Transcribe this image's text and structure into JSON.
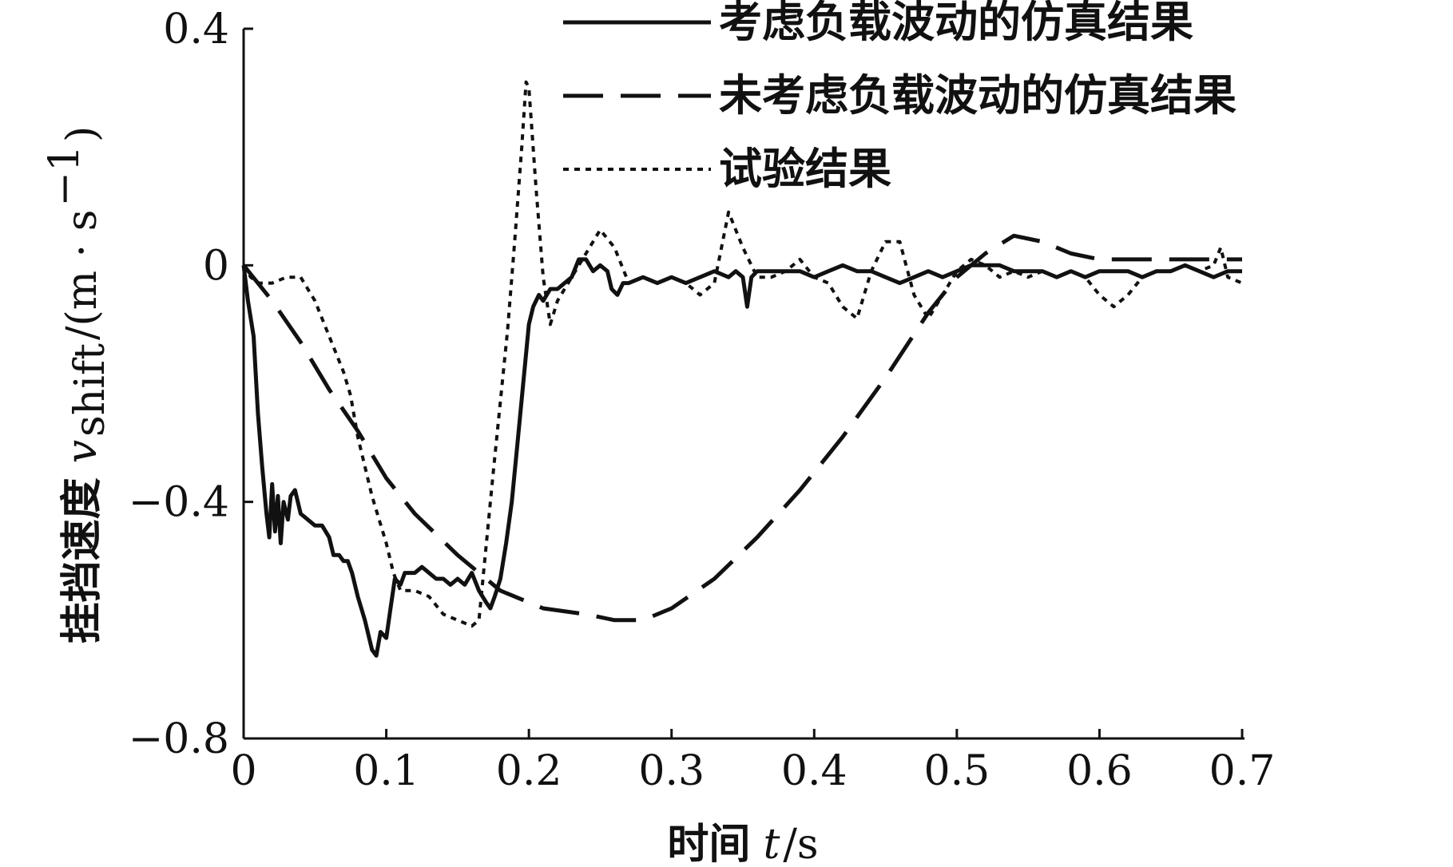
{
  "chart_data": {
    "type": "line",
    "title": "",
    "xlabel": {
      "prefix": "时间",
      "symbol": "t",
      "unit": "/s"
    },
    "ylabel": {
      "prefix": "挂挡速度",
      "symbol": "v",
      "subscript": "shift",
      "unit_open": "/(m · s",
      "unit_sup": "−1",
      "unit_close": ")"
    },
    "xlim": [
      0,
      0.7
    ],
    "ylim": [
      -0.8,
      0.4
    ],
    "x_ticks": [
      0,
      0.1,
      0.2,
      0.3,
      0.4,
      0.5,
      0.6,
      0.7
    ],
    "x_tick_labels": [
      "0",
      "0.1",
      "0.2",
      "0.3",
      "0.4",
      "0.5",
      "0.6",
      "0.7"
    ],
    "y_ticks": [
      -0.8,
      -0.4,
      0,
      0.4
    ],
    "y_tick_labels": [
      "−0.8",
      "−0.4",
      "0",
      "0.4"
    ],
    "legend_position": "top-right",
    "grid": false,
    "series": [
      {
        "name": "考虑负载波动的仿真结果",
        "style": "solid",
        "points": [
          [
            0,
            0
          ],
          [
            0.003,
            -0.06
          ],
          [
            0.007,
            -0.12
          ],
          [
            0.01,
            -0.25
          ],
          [
            0.013,
            -0.34
          ],
          [
            0.016,
            -0.42
          ],
          [
            0.018,
            -0.46
          ],
          [
            0.02,
            -0.37
          ],
          [
            0.022,
            -0.45
          ],
          [
            0.024,
            -0.39
          ],
          [
            0.026,
            -0.47
          ],
          [
            0.028,
            -0.4
          ],
          [
            0.031,
            -0.43
          ],
          [
            0.033,
            -0.39
          ],
          [
            0.036,
            -0.38
          ],
          [
            0.04,
            -0.42
          ],
          [
            0.045,
            -0.43
          ],
          [
            0.05,
            -0.44
          ],
          [
            0.055,
            -0.44
          ],
          [
            0.06,
            -0.46
          ],
          [
            0.063,
            -0.49
          ],
          [
            0.067,
            -0.49
          ],
          [
            0.07,
            -0.5
          ],
          [
            0.073,
            -0.5
          ],
          [
            0.076,
            -0.52
          ],
          [
            0.08,
            -0.56
          ],
          [
            0.085,
            -0.6
          ],
          [
            0.09,
            -0.65
          ],
          [
            0.093,
            -0.66
          ],
          [
            0.096,
            -0.62
          ],
          [
            0.1,
            -0.63
          ],
          [
            0.103,
            -0.58
          ],
          [
            0.106,
            -0.53
          ],
          [
            0.11,
            -0.54
          ],
          [
            0.113,
            -0.52
          ],
          [
            0.117,
            -0.52
          ],
          [
            0.12,
            -0.52
          ],
          [
            0.125,
            -0.51
          ],
          [
            0.13,
            -0.52
          ],
          [
            0.135,
            -0.53
          ],
          [
            0.14,
            -0.53
          ],
          [
            0.145,
            -0.54
          ],
          [
            0.15,
            -0.53
          ],
          [
            0.155,
            -0.54
          ],
          [
            0.16,
            -0.52
          ],
          [
            0.165,
            -0.55
          ],
          [
            0.17,
            -0.57
          ],
          [
            0.173,
            -0.58
          ],
          [
            0.176,
            -0.56
          ],
          [
            0.18,
            -0.53
          ],
          [
            0.184,
            -0.47
          ],
          [
            0.188,
            -0.4
          ],
          [
            0.192,
            -0.3
          ],
          [
            0.196,
            -0.2
          ],
          [
            0.2,
            -0.1
          ],
          [
            0.203,
            -0.07
          ],
          [
            0.207,
            -0.05
          ],
          [
            0.21,
            -0.06
          ],
          [
            0.215,
            -0.04
          ],
          [
            0.22,
            -0.04
          ],
          [
            0.225,
            -0.03
          ],
          [
            0.23,
            -0.02
          ],
          [
            0.235,
            0.01
          ],
          [
            0.24,
            0.01
          ],
          [
            0.245,
            -0.01
          ],
          [
            0.25,
            0.0
          ],
          [
            0.255,
            -0.01
          ],
          [
            0.258,
            -0.04
          ],
          [
            0.262,
            -0.05
          ],
          [
            0.266,
            -0.03
          ],
          [
            0.27,
            -0.03
          ],
          [
            0.28,
            -0.02
          ],
          [
            0.29,
            -0.03
          ],
          [
            0.3,
            -0.02
          ],
          [
            0.31,
            -0.03
          ],
          [
            0.32,
            -0.02
          ],
          [
            0.33,
            -0.01
          ],
          [
            0.34,
            -0.02
          ],
          [
            0.345,
            -0.01
          ],
          [
            0.35,
            -0.02
          ],
          [
            0.353,
            -0.07
          ],
          [
            0.356,
            -0.02
          ],
          [
            0.36,
            -0.01
          ],
          [
            0.37,
            -0.01
          ],
          [
            0.38,
            -0.01
          ],
          [
            0.39,
            -0.01
          ],
          [
            0.4,
            -0.02
          ],
          [
            0.41,
            -0.01
          ],
          [
            0.42,
            0.0
          ],
          [
            0.43,
            -0.01
          ],
          [
            0.44,
            -0.01
          ],
          [
            0.45,
            -0.02
          ],
          [
            0.46,
            -0.03
          ],
          [
            0.47,
            -0.02
          ],
          [
            0.48,
            -0.01
          ],
          [
            0.49,
            -0.02
          ],
          [
            0.5,
            -0.01
          ],
          [
            0.51,
            0.0
          ],
          [
            0.52,
            0.0
          ],
          [
            0.53,
            0.0
          ],
          [
            0.54,
            -0.01
          ],
          [
            0.55,
            -0.01
          ],
          [
            0.56,
            -0.01
          ],
          [
            0.57,
            -0.02
          ],
          [
            0.58,
            -0.01
          ],
          [
            0.59,
            -0.02
          ],
          [
            0.6,
            -0.01
          ],
          [
            0.61,
            -0.01
          ],
          [
            0.62,
            -0.01
          ],
          [
            0.63,
            -0.02
          ],
          [
            0.64,
            -0.01
          ],
          [
            0.65,
            -0.01
          ],
          [
            0.66,
            0.0
          ],
          [
            0.67,
            -0.01
          ],
          [
            0.68,
            -0.02
          ],
          [
            0.69,
            -0.01
          ],
          [
            0.7,
            -0.01
          ]
        ]
      },
      {
        "name": "未考虑负载波动的仿真结果",
        "style": "dashed",
        "points": [
          [
            0,
            0
          ],
          [
            0.02,
            -0.06
          ],
          [
            0.04,
            -0.13
          ],
          [
            0.06,
            -0.21
          ],
          [
            0.08,
            -0.28
          ],
          [
            0.1,
            -0.36
          ],
          [
            0.12,
            -0.42
          ],
          [
            0.15,
            -0.49
          ],
          [
            0.18,
            -0.55
          ],
          [
            0.21,
            -0.58
          ],
          [
            0.24,
            -0.59
          ],
          [
            0.26,
            -0.6
          ],
          [
            0.28,
            -0.6
          ],
          [
            0.3,
            -0.58
          ],
          [
            0.33,
            -0.53
          ],
          [
            0.36,
            -0.46
          ],
          [
            0.39,
            -0.38
          ],
          [
            0.42,
            -0.29
          ],
          [
            0.45,
            -0.19
          ],
          [
            0.48,
            -0.08
          ],
          [
            0.5,
            -0.02
          ],
          [
            0.52,
            0.02
          ],
          [
            0.54,
            0.05
          ],
          [
            0.56,
            0.04
          ],
          [
            0.58,
            0.02
          ],
          [
            0.6,
            0.01
          ],
          [
            0.63,
            0.01
          ],
          [
            0.66,
            0.01
          ],
          [
            0.7,
            0.01
          ]
        ]
      },
      {
        "name": "试验结果",
        "style": "dotted",
        "points": [
          [
            0,
            0
          ],
          [
            0.005,
            -0.02
          ],
          [
            0.01,
            -0.03
          ],
          [
            0.02,
            -0.03
          ],
          [
            0.03,
            -0.02
          ],
          [
            0.04,
            -0.02
          ],
          [
            0.05,
            -0.06
          ],
          [
            0.06,
            -0.12
          ],
          [
            0.07,
            -0.18
          ],
          [
            0.075,
            -0.22
          ],
          [
            0.08,
            -0.29
          ],
          [
            0.09,
            -0.39
          ],
          [
            0.1,
            -0.47
          ],
          [
            0.105,
            -0.52
          ],
          [
            0.11,
            -0.55
          ],
          [
            0.12,
            -0.55
          ],
          [
            0.13,
            -0.56
          ],
          [
            0.14,
            -0.59
          ],
          [
            0.15,
            -0.6
          ],
          [
            0.16,
            -0.61
          ],
          [
            0.165,
            -0.6
          ],
          [
            0.175,
            -0.35
          ],
          [
            0.185,
            -0.11
          ],
          [
            0.19,
            0.04
          ],
          [
            0.195,
            0.2
          ],
          [
            0.198,
            0.31
          ],
          [
            0.2,
            0.3
          ],
          [
            0.205,
            0.13
          ],
          [
            0.21,
            -0.02
          ],
          [
            0.215,
            -0.1
          ],
          [
            0.22,
            -0.06
          ],
          [
            0.23,
            -0.02
          ],
          [
            0.24,
            0.02
          ],
          [
            0.25,
            0.06
          ],
          [
            0.26,
            0.03
          ],
          [
            0.27,
            -0.03
          ],
          [
            0.28,
            -0.02
          ],
          [
            0.29,
            -0.03
          ],
          [
            0.3,
            -0.02
          ],
          [
            0.31,
            -0.03
          ],
          [
            0.32,
            -0.05
          ],
          [
            0.33,
            -0.03
          ],
          [
            0.34,
            0.09
          ],
          [
            0.35,
            0.03
          ],
          [
            0.36,
            -0.02
          ],
          [
            0.37,
            -0.02
          ],
          [
            0.38,
            -0.01
          ],
          [
            0.39,
            0.01
          ],
          [
            0.4,
            -0.02
          ],
          [
            0.41,
            -0.03
          ],
          [
            0.42,
            -0.07
          ],
          [
            0.43,
            -0.09
          ],
          [
            0.44,
            -0.01
          ],
          [
            0.45,
            0.04
          ],
          [
            0.46,
            0.04
          ],
          [
            0.47,
            -0.05
          ],
          [
            0.48,
            -0.09
          ],
          [
            0.49,
            -0.05
          ],
          [
            0.5,
            -0.01
          ],
          [
            0.51,
            0.01
          ],
          [
            0.52,
            0.0
          ],
          [
            0.53,
            -0.02
          ],
          [
            0.54,
            -0.01
          ],
          [
            0.55,
            -0.02
          ],
          [
            0.56,
            -0.01
          ],
          [
            0.57,
            -0.02
          ],
          [
            0.58,
            -0.01
          ],
          [
            0.59,
            -0.02
          ],
          [
            0.6,
            -0.05
          ],
          [
            0.61,
            -0.07
          ],
          [
            0.62,
            -0.05
          ],
          [
            0.63,
            -0.02
          ],
          [
            0.64,
            -0.01
          ],
          [
            0.65,
            -0.01
          ],
          [
            0.66,
            0.0
          ],
          [
            0.67,
            -0.01
          ],
          [
            0.68,
            0.0
          ],
          [
            0.685,
            0.03
          ],
          [
            0.69,
            -0.02
          ],
          [
            0.7,
            -0.03
          ]
        ]
      }
    ]
  }
}
